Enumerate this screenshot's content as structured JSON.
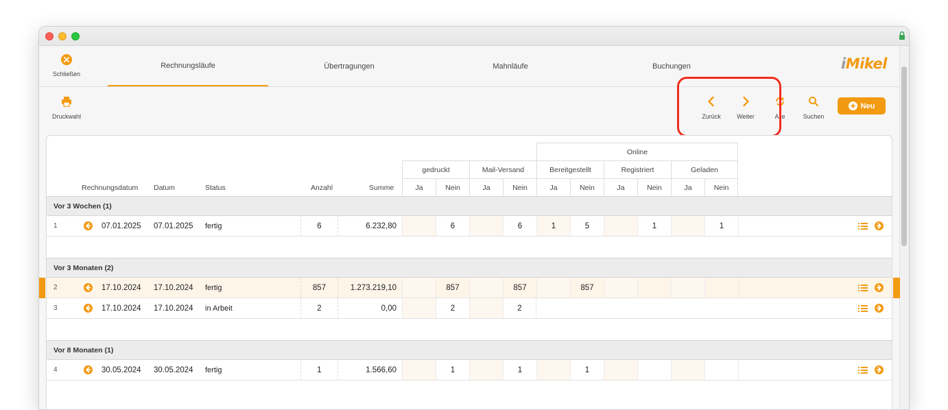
{
  "nav": {
    "close_label": "Schließen",
    "tabs": [
      {
        "label": "Rechnungsläufe",
        "active": true
      },
      {
        "label": "Übertragungen",
        "active": false
      },
      {
        "label": "Mahnläufe",
        "active": false
      },
      {
        "label": "Buchungen",
        "active": false
      }
    ],
    "logo": {
      "i": "i",
      "rest": "Mikel"
    }
  },
  "toolbar": {
    "print_label": "Druckwahl",
    "back_label": "Zurück",
    "forward_label": "Weiter",
    "all_label": "Alle",
    "search_label": "Suchen",
    "new_label": "Neu"
  },
  "colors": {
    "accent": "#f29a12",
    "highlight": "#f02d1f"
  },
  "table": {
    "headers": {
      "rechnungsdatum": "Rechnungsdatum",
      "datum": "Datum",
      "status": "Status",
      "anzahl": "Anzahl",
      "summe": "Summe",
      "online": "Online",
      "gedruckt": "gedruckt",
      "mail": "Mail-Versand",
      "bereit": "Bereitgestellt",
      "registriert": "Registriert",
      "geladen": "Geladen",
      "ja": "Ja",
      "nein": "Nein"
    },
    "groups": [
      {
        "title": "Vor 3 Wochen (1)",
        "rows": [
          {
            "idx": "1",
            "rechnungsdatum": "07.01.2025",
            "datum": "07.01.2025",
            "status": "fertig",
            "anzahl": "6",
            "summe": "6.232,80",
            "cols": [
              "",
              "6",
              "",
              "6",
              "1",
              "5",
              "",
              "1",
              "",
              "1"
            ],
            "online": true,
            "selected": false
          }
        ]
      },
      {
        "title": "Vor 3 Monaten (2)",
        "rows": [
          {
            "idx": "2",
            "rechnungsdatum": "17.10.2024",
            "datum": "17.10.2024",
            "status": "fertig",
            "anzahl": "857",
            "summe": "1.273.219,10",
            "cols": [
              "",
              "857",
              "",
              "857",
              "",
              "857",
              "",
              "",
              "",
              ""
            ],
            "online": true,
            "selected": true
          },
          {
            "idx": "3",
            "rechnungsdatum": "17.10.2024",
            "datum": "17.10.2024",
            "status": "in Arbeit",
            "anzahl": "2",
            "summe": "0,00",
            "cols": [
              "",
              "2",
              "",
              "2"
            ],
            "online": false,
            "selected": false
          }
        ]
      },
      {
        "title": "Vor 8 Monaten (1)",
        "rows": [
          {
            "idx": "4",
            "rechnungsdatum": "30.05.2024",
            "datum": "30.05.2024",
            "status": "fertig",
            "anzahl": "1",
            "summe": "1.566,60",
            "cols": [
              "",
              "1",
              "",
              "1",
              "",
              "1",
              "",
              "",
              "",
              ""
            ],
            "online": true,
            "selected": false
          }
        ]
      }
    ]
  }
}
